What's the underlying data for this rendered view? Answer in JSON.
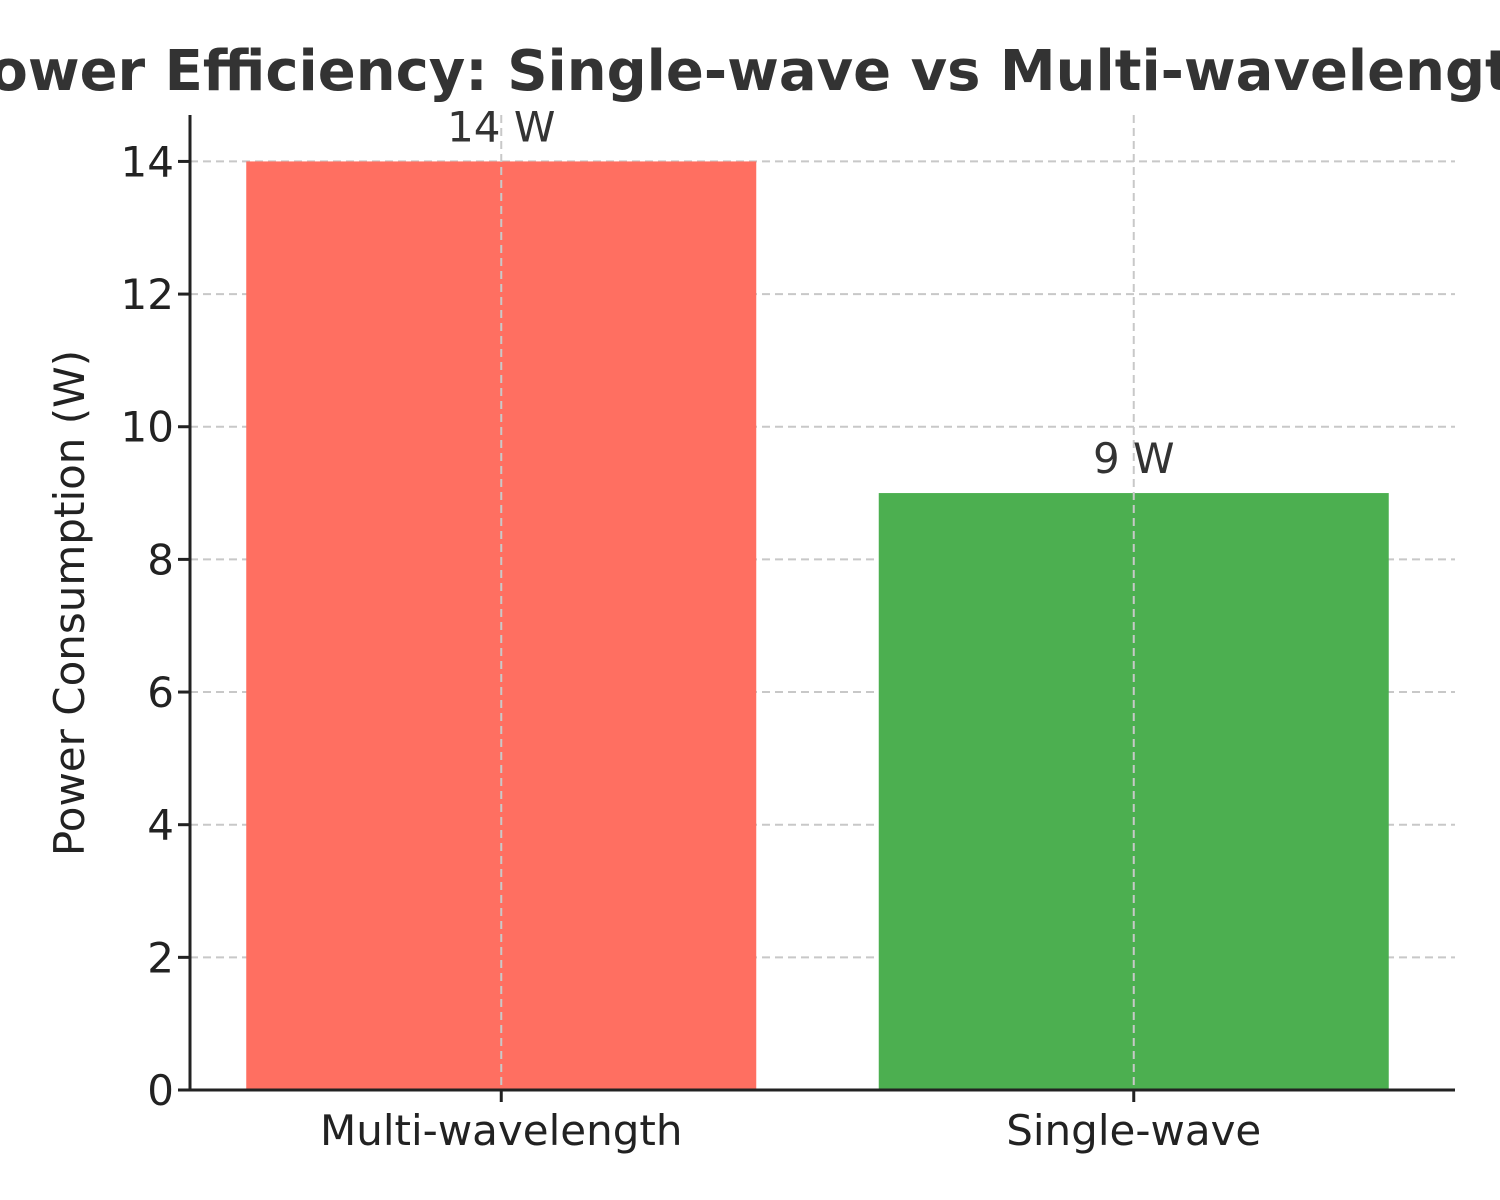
{
  "chart_data": {
    "type": "bar",
    "title": "Power Efficiency: Single-wave vs Multi-wavelength",
    "xlabel": "",
    "ylabel": "Power Consumption (W)",
    "categories": [
      "Multi-wavelength",
      "Single-wave"
    ],
    "values": [
      14,
      9
    ],
    "data_labels": [
      "14 W",
      "9 W"
    ],
    "colors": [
      "#FF6F61",
      "#4CAF50"
    ],
    "ylim": [
      0,
      14.7
    ],
    "yticks": [
      0,
      2,
      4,
      6,
      8,
      10,
      12,
      14
    ],
    "ytick_labels": [
      "0",
      "2",
      "4",
      "6",
      "8",
      "10",
      "12",
      "14"
    ],
    "grid": true,
    "legend": "none"
  }
}
